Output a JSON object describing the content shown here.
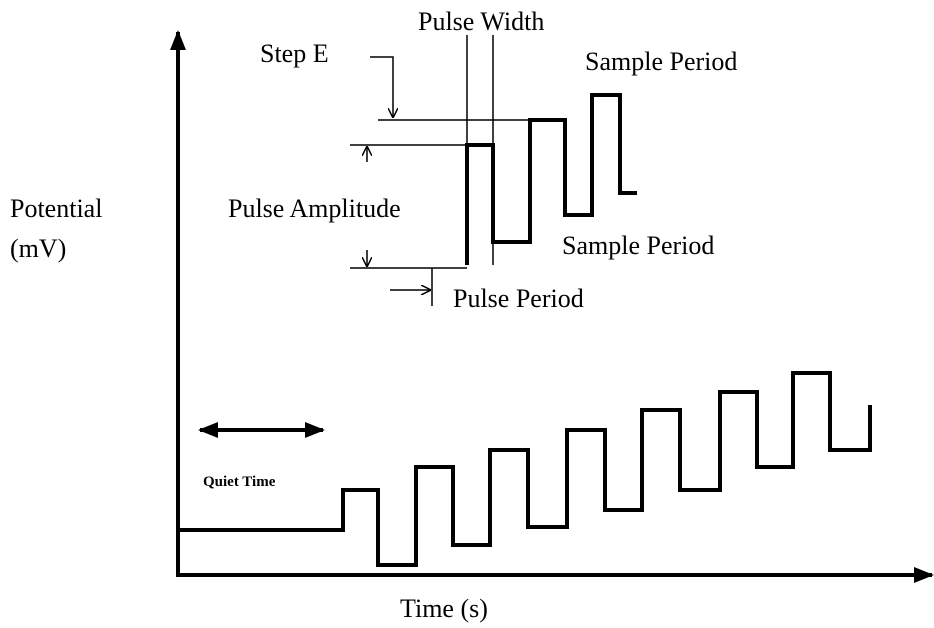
{
  "axes": {
    "y_label": [
      "Potential",
      "(mV)"
    ],
    "x_label": "Time (s)"
  },
  "annotations": {
    "pulse_width": "Pulse Width",
    "step_e": "Step E",
    "sample_period_top": "Sample Period",
    "pulse_amplitude": "Pulse Amplitude",
    "sample_period_bottom": "Sample Period",
    "pulse_period": "Pulse Period",
    "quiet_time": "Quiet Time"
  }
}
